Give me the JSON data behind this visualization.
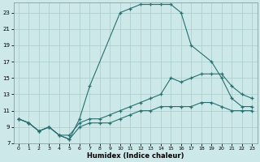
{
  "background_color": "#cce8e8",
  "grid_color": "#aacccc",
  "line_color": "#2a7070",
  "xlabel": "Humidex (Indice chaleur)",
  "xlim": [
    -0.5,
    23.5
  ],
  "ylim": [
    7,
    24.2
  ],
  "xticks": [
    0,
    1,
    2,
    3,
    4,
    5,
    6,
    7,
    8,
    9,
    10,
    11,
    12,
    13,
    14,
    15,
    16,
    17,
    18,
    19,
    20,
    21,
    22,
    23
  ],
  "yticks": [
    7,
    9,
    11,
    13,
    15,
    17,
    19,
    21,
    23
  ],
  "line1_x": [
    0,
    1,
    2,
    3,
    4,
    5,
    6,
    7,
    10,
    11,
    12,
    13,
    14,
    15,
    16,
    17,
    19,
    20,
    21,
    22,
    23
  ],
  "line1_y": [
    10,
    9.5,
    8.5,
    9.0,
    8.0,
    7.5,
    10.0,
    14.0,
    23.0,
    23.5,
    24.0,
    24.0,
    24.0,
    24.0,
    23.0,
    19.0,
    17.0,
    15.0,
    12.5,
    11.5,
    11.5
  ],
  "line2_x": [
    0,
    1,
    2,
    3,
    4,
    5,
    6,
    7,
    8,
    9,
    10,
    11,
    12,
    13,
    14,
    15,
    16,
    17,
    18,
    19,
    20,
    21,
    22,
    23
  ],
  "line2_y": [
    10,
    9.5,
    8.5,
    9.0,
    8.0,
    8.0,
    9.5,
    10.0,
    10.0,
    10.5,
    11.0,
    11.5,
    12.0,
    12.5,
    13.0,
    15.0,
    14.5,
    15.0,
    15.5,
    15.5,
    15.5,
    14.0,
    13.0,
    12.5
  ],
  "line3_x": [
    0,
    1,
    2,
    3,
    4,
    5,
    6,
    7,
    8,
    9,
    10,
    11,
    12,
    13,
    14,
    15,
    16,
    17,
    18,
    19,
    20,
    21,
    22,
    23
  ],
  "line3_y": [
    10,
    9.5,
    8.5,
    9.0,
    8.0,
    7.5,
    9.0,
    9.5,
    9.5,
    9.5,
    10.0,
    10.5,
    11.0,
    11.0,
    11.5,
    11.5,
    11.5,
    11.5,
    12.0,
    12.0,
    11.5,
    11.0,
    11.0,
    11.0
  ]
}
